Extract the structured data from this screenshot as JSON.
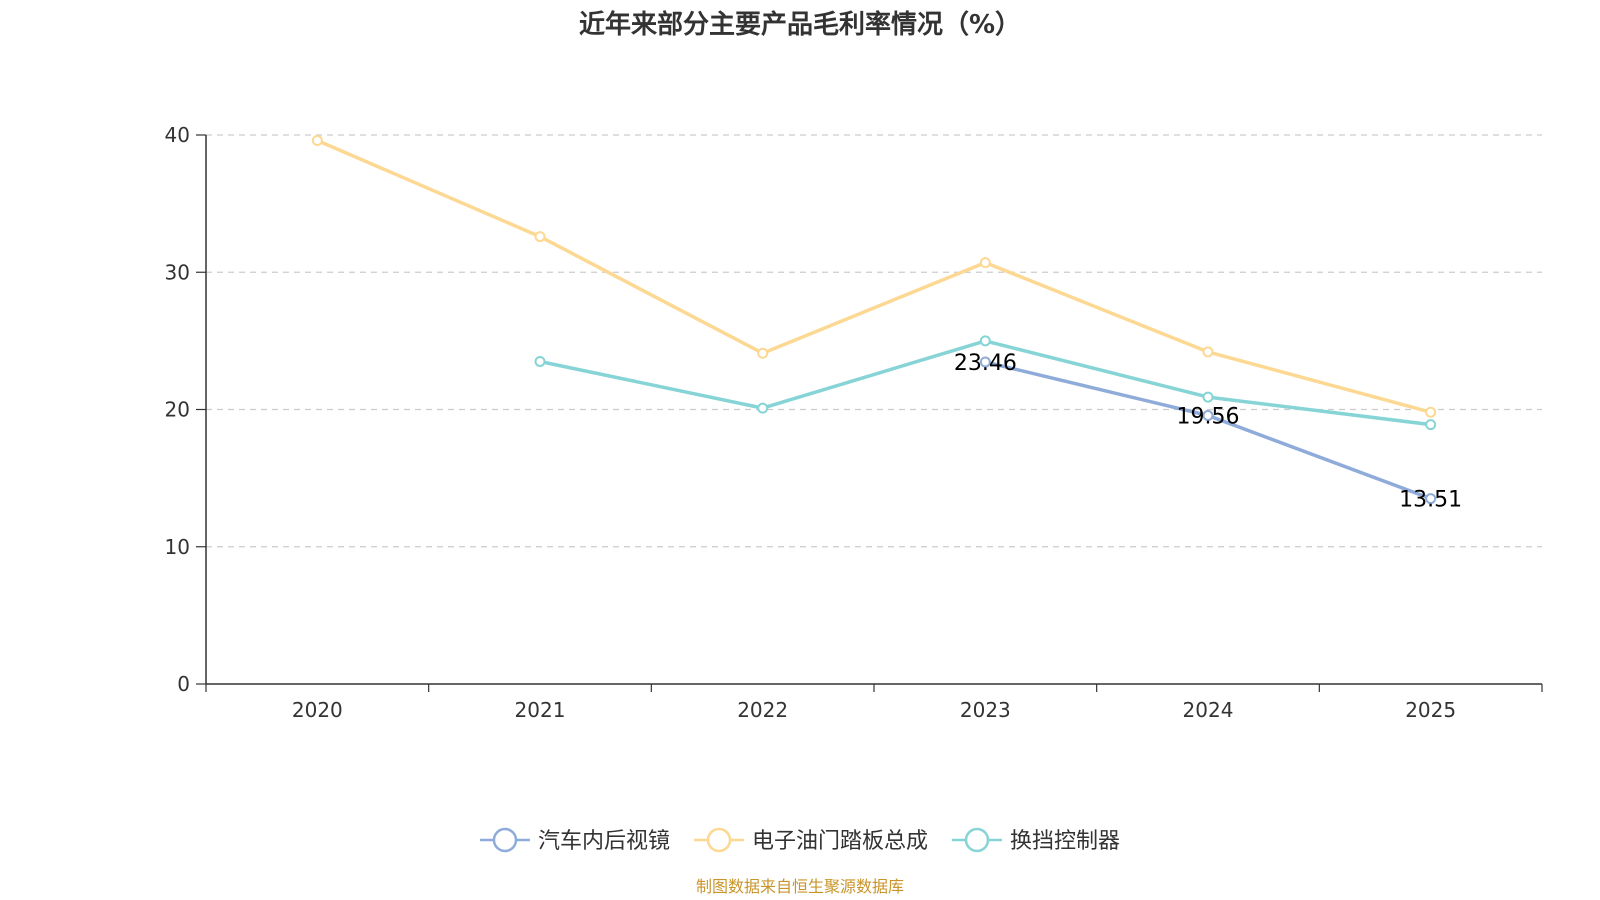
{
  "chart_data": {
    "type": "line",
    "title": "近年来部分主要产品毛利率情况（%）",
    "xlabel": "",
    "ylabel": "",
    "categories": [
      "2020",
      "2021",
      "2022",
      "2023",
      "2024",
      "2025"
    ],
    "ylim": [
      0,
      40
    ],
    "yticks": [
      0,
      10,
      20,
      30,
      40
    ],
    "grid": true,
    "legend_position": "bottom",
    "series": [
      {
        "name": "汽车内后视镜",
        "color": "#8fabd9",
        "values": [
          null,
          null,
          null,
          23.46,
          19.56,
          13.51
        ],
        "data_labels": [
          "",
          "",
          "",
          "23.46",
          "19.56",
          "13.51"
        ]
      },
      {
        "name": "电子油门踏板总成",
        "color": "#fcd893",
        "values": [
          39.6,
          32.6,
          24.1,
          30.7,
          24.2,
          19.8
        ],
        "data_labels": [
          "",
          "",
          "",
          "",
          "",
          ""
        ]
      },
      {
        "name": "换挡控制器",
        "color": "#86d4d6",
        "values": [
          null,
          23.5,
          20.1,
          25.0,
          20.9,
          18.9
        ],
        "data_labels": [
          "",
          "",
          "",
          "",
          "",
          ""
        ]
      }
    ],
    "source": "制图数据来自恒生聚源数据库"
  }
}
